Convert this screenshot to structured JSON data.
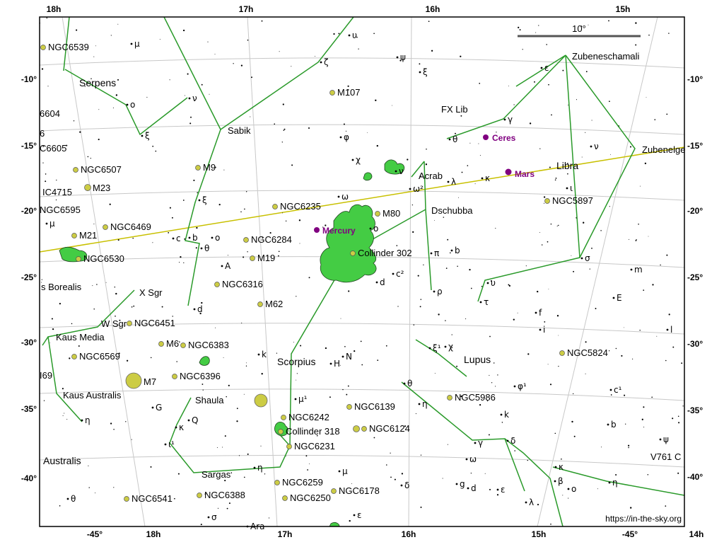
{
  "ra_top": [
    "18h",
    "17h",
    "16h",
    "15h"
  ],
  "ra_bottom": [
    "18h",
    "17h",
    "16h",
    "15h",
    "14h"
  ],
  "dec_ticks": [
    "-10°",
    "-15°",
    "-20°",
    "-25°",
    "-30°",
    "-35°",
    "-40°"
  ],
  "dec_bottom": [
    "-45°",
    "-45°"
  ],
  "scale_label": "10°",
  "credit": "https://in-the-sky.org",
  "colors": {
    "constellation_line": "#2a9a2a",
    "ecliptic": "#c8c000",
    "planet": "#800080",
    "nebula": "#44cc44",
    "cluster": "#cccc44",
    "grid": "#c8c8c8"
  },
  "constellations": [
    "Serpens",
    "Libra",
    "Scorpius",
    "Lupus",
    "s Borealis",
    "Australis"
  ],
  "stars_named": [
    "Zubeneschamali",
    "Zubenelge",
    "Sabik",
    "Acrab",
    "Dschubba",
    "FX Lib",
    "X Sgr",
    "W Sgr",
    "Kaus Media",
    "Kaus Australis",
    "Shaula",
    "Sargas",
    "V761 C"
  ],
  "planets": [
    "Ceres",
    "Mars",
    "Mercury"
  ],
  "deep_sky": [
    "NGC6539",
    "M107",
    "NGC6507",
    "M9",
    "M23",
    "NGC6235",
    "M80",
    "NGC6469",
    "M21",
    "NGC6284",
    "Collinder 302",
    "NGC6530",
    "M19",
    "NGC6316",
    "M62",
    "NGC6451",
    "M6",
    "NGC6383",
    "NGC6569",
    "M7",
    "NGC6396",
    "NGC6242",
    "Collinder 318",
    "NGC6231",
    "NGC6139",
    "NGC6124",
    "NGC5986",
    "NGC5897",
    "NGC5824",
    "NGC6259",
    "NGC6178",
    "NGC6250",
    "NGC6541",
    "NGC6388",
    "IC4715",
    "NGC6595",
    "C6605",
    "6604",
    "6",
    "I69"
  ],
  "greek": [
    "μ",
    "υ",
    "ζ",
    "ψ",
    "ξ",
    "ο",
    "ν",
    "ξ",
    "ε",
    "γ",
    "θ",
    "χ",
    "φ",
    "ν",
    "ω²",
    "λ",
    "κ",
    "ι",
    "ν",
    "ω",
    "μ",
    "c",
    "b",
    "ο",
    "θ",
    "A",
    "ξ",
    "ο",
    "π",
    "b",
    "c²",
    "d",
    "ρ",
    "σ",
    "m",
    "υ",
    "τ",
    "E",
    "f",
    "i",
    "l",
    "d",
    "k",
    "N",
    "H",
    "ξ¹",
    "χ",
    "φ¹",
    "c¹",
    "θ",
    "η",
    "k",
    "G",
    "κ",
    "Q",
    "μ¹",
    "ι¹",
    "η",
    "μ",
    "σ",
    "γ",
    "δ",
    "ω",
    "g",
    "d",
    "ε",
    "λ",
    "δ",
    "ε",
    "κ",
    "β",
    "ο",
    "η",
    "b",
    "ψ",
    "η",
    "θ",
    "Ara"
  ]
}
